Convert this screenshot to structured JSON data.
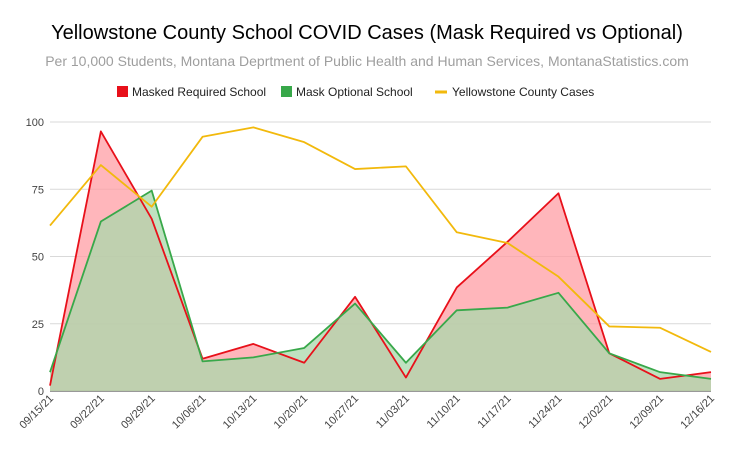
{
  "chart_data": {
    "type": "area",
    "title": "Yellowstone County School COVID Cases (Mask Required vs Optional)",
    "subtitle": "Per 10,000 Students, Montana Deprtment of Public Health and Human Services, MontanaStatistics.com",
    "xlabel": "",
    "ylabel": "",
    "categories": [
      "09/15/21",
      "09/22/21",
      "09/29/21",
      "10/06/21",
      "10/13/21",
      "10/20/21",
      "10/27/21",
      "11/03/21",
      "11/10/21",
      "11/17/21",
      "11/24/21",
      "12/02/21",
      "12/09/21",
      "12/16/21"
    ],
    "ylim": [
      0,
      100
    ],
    "yticks": [
      0,
      25,
      50,
      75,
      100
    ],
    "grid": true,
    "legend_position": "top",
    "series": [
      {
        "name": "Masked Required School",
        "color": "#e8101a",
        "fill": "#ff9ea4",
        "style": "area",
        "values": [
          2,
          96.5,
          64,
          12,
          17.5,
          10.5,
          35,
          5,
          38.5,
          55.5,
          73.5,
          14,
          4.5,
          7
        ]
      },
      {
        "name": "Mask Optional School",
        "color": "#38a84a",
        "fill": "#a9d8ab",
        "style": "area",
        "values": [
          7,
          63,
          74.5,
          11,
          12.5,
          16,
          32.5,
          10.5,
          30,
          31,
          36.5,
          14,
          7,
          4.5
        ]
      },
      {
        "name": "Yellowstone County Cases",
        "color": "#f2b90c",
        "style": "line",
        "values": [
          61.5,
          84,
          68.5,
          94.5,
          98,
          92.5,
          82.5,
          83.5,
          59,
          55,
          42.5,
          24,
          23.5,
          14.5
        ]
      }
    ]
  }
}
